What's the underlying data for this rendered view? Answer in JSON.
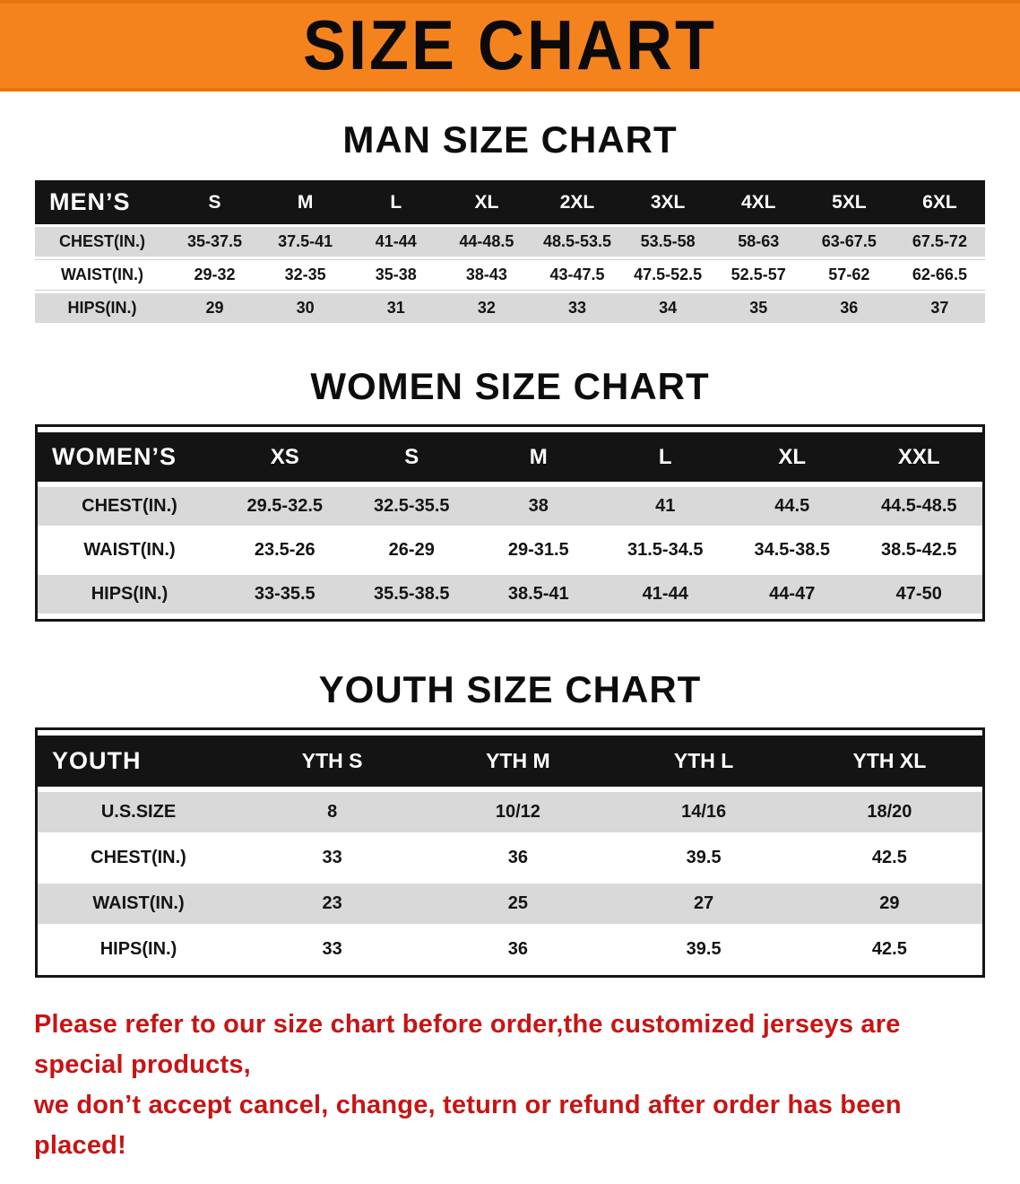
{
  "banner": {
    "title": "SIZE CHART"
  },
  "colors": {
    "banner_bg": "#f5831d",
    "banner_edge": "#e8750e",
    "header_bg": "#141414",
    "row_shade": "#d9d9d9",
    "notice_red": "#c81414"
  },
  "chart_data": [
    {
      "type": "table",
      "title": "MAN SIZE CHART",
      "header": [
        "MEN’S",
        "S",
        "M",
        "L",
        "XL",
        "2XL",
        "3XL",
        "4XL",
        "5XL",
        "6XL"
      ],
      "rows": [
        [
          "CHEST(IN.)",
          "35-37.5",
          "37.5-41",
          "41-44",
          "44-48.5",
          "48.5-53.5",
          "53.5-58",
          "58-63",
          "63-67.5",
          "67.5-72"
        ],
        [
          "WAIST(IN.)",
          "29-32",
          "32-35",
          "35-38",
          "38-43",
          "43-47.5",
          "47.5-52.5",
          "52.5-57",
          "57-62",
          "62-66.5"
        ],
        [
          "HIPS(IN.)",
          "29",
          "30",
          "31",
          "32",
          "33",
          "34",
          "35",
          "36",
          "37"
        ]
      ]
    },
    {
      "type": "table",
      "title": "WOMEN SIZE CHART",
      "header": [
        "WOMEN’S",
        "XS",
        "S",
        "M",
        "L",
        "XL",
        "XXL"
      ],
      "rows": [
        [
          "CHEST(IN.)",
          "29.5-32.5",
          "32.5-35.5",
          "38",
          "41",
          "44.5",
          "44.5-48.5"
        ],
        [
          "WAIST(IN.)",
          "23.5-26",
          "26-29",
          "29-31.5",
          "31.5-34.5",
          "34.5-38.5",
          "38.5-42.5"
        ],
        [
          "HIPS(IN.)",
          "33-35.5",
          "35.5-38.5",
          "38.5-41",
          "41-44",
          "44-47",
          "47-50"
        ]
      ]
    },
    {
      "type": "table",
      "title": "YOUTH SIZE CHART",
      "header": [
        "YOUTH",
        "YTH S",
        "YTH M",
        "YTH L",
        "YTH XL"
      ],
      "rows": [
        [
          "U.S.SIZE",
          "8",
          "10/12",
          "14/16",
          "18/20"
        ],
        [
          "CHEST(IN.)",
          "33",
          "36",
          "39.5",
          "42.5"
        ],
        [
          "WAIST(IN.)",
          "23",
          "25",
          "27",
          "29"
        ],
        [
          "HIPS(IN.)",
          "33",
          "36",
          "39.5",
          "42.5"
        ]
      ]
    }
  ],
  "notice": {
    "line1": "Please refer to our size chart before order,the customized jerseys are special products,",
    "line2": "we don’t accept cancel, change, teturn or refund after order has been placed!"
  }
}
